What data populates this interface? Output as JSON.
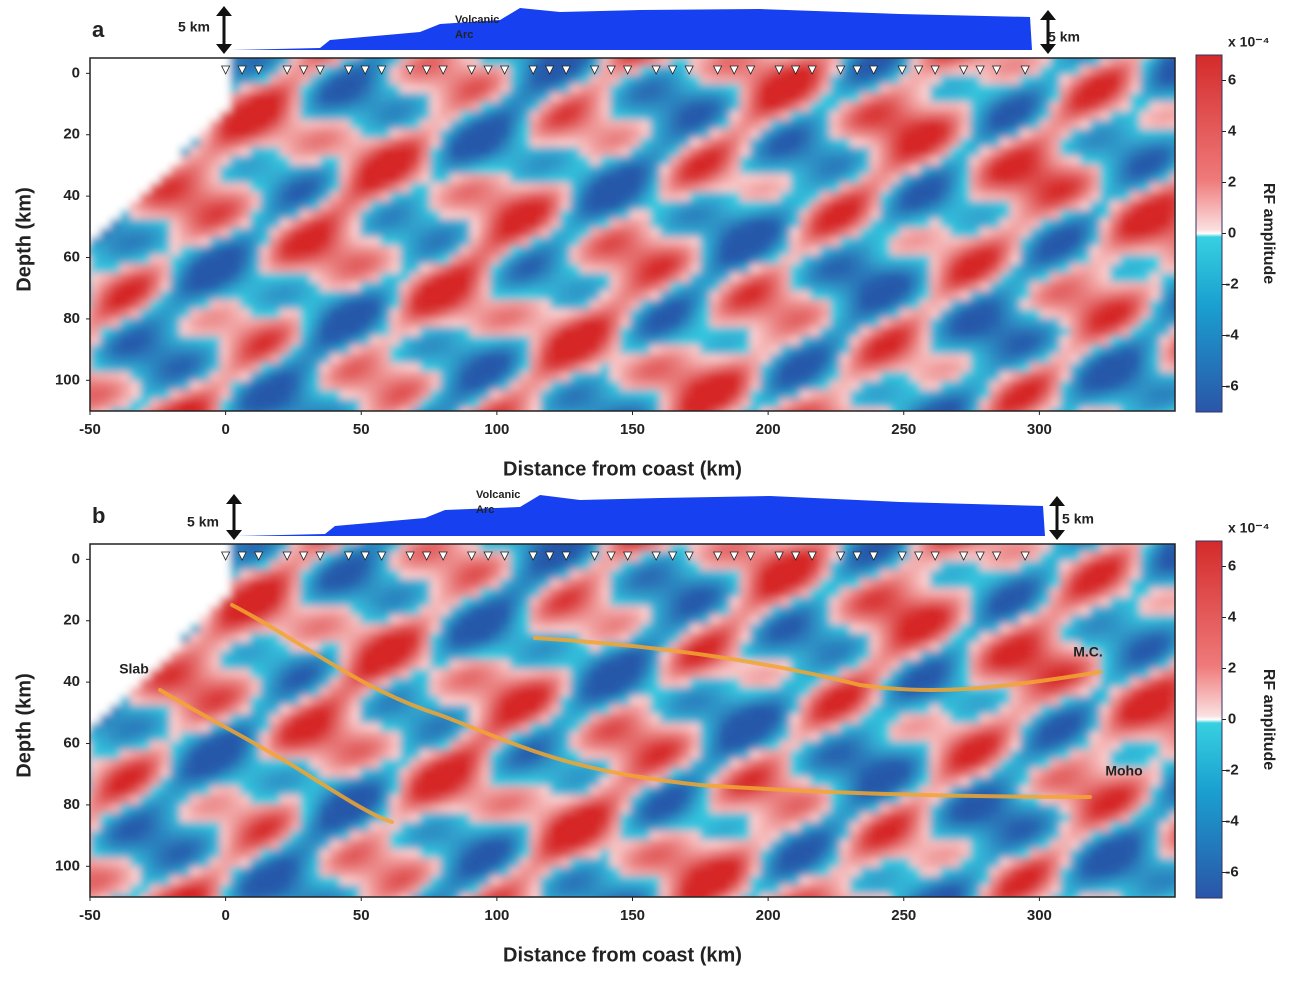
{
  "chart_data": [
    {
      "type": "heatmap",
      "panel_label": "a",
      "x_label": "Distance from coast (km)",
      "y_label": "Depth (km)",
      "xlim": [
        -50,
        350
      ],
      "xticks": [
        -50,
        0,
        50,
        100,
        150,
        200,
        250,
        300
      ],
      "ylim": [
        -5,
        110
      ],
      "yticks": [
        0,
        20,
        40,
        60,
        80,
        100
      ],
      "colorbar_label": "RF amplitude",
      "colorbar_exponent": "x 10⁻⁴",
      "clim": [
        -7,
        7
      ],
      "cticks": [
        -6,
        -4,
        -2,
        0,
        2,
        4,
        6
      ],
      "topography_labels": [
        "Volcanic",
        "Arc"
      ],
      "scale_labels": [
        "5 km",
        "5 km"
      ]
    },
    {
      "type": "heatmap",
      "panel_label": "b",
      "x_label": "Distance from coast (km)",
      "y_label": "Depth (km)",
      "xlim": [
        -50,
        350
      ],
      "xticks": [
        -50,
        0,
        50,
        100,
        150,
        200,
        250,
        300
      ],
      "ylim": [
        -5,
        110
      ],
      "yticks": [
        0,
        20,
        40,
        60,
        80,
        100
      ],
      "colorbar_label": "RF amplitude",
      "colorbar_exponent": "x 10⁻⁴",
      "clim": [
        -7,
        7
      ],
      "cticks": [
        -6,
        -4,
        -2,
        0,
        2,
        4,
        6
      ],
      "topography_labels": [
        "Volcanic",
        "Arc"
      ],
      "scale_labels": [
        "5 km",
        "5 km"
      ],
      "annotations": [
        "Slab",
        "M.C.",
        "Moho"
      ]
    }
  ]
}
